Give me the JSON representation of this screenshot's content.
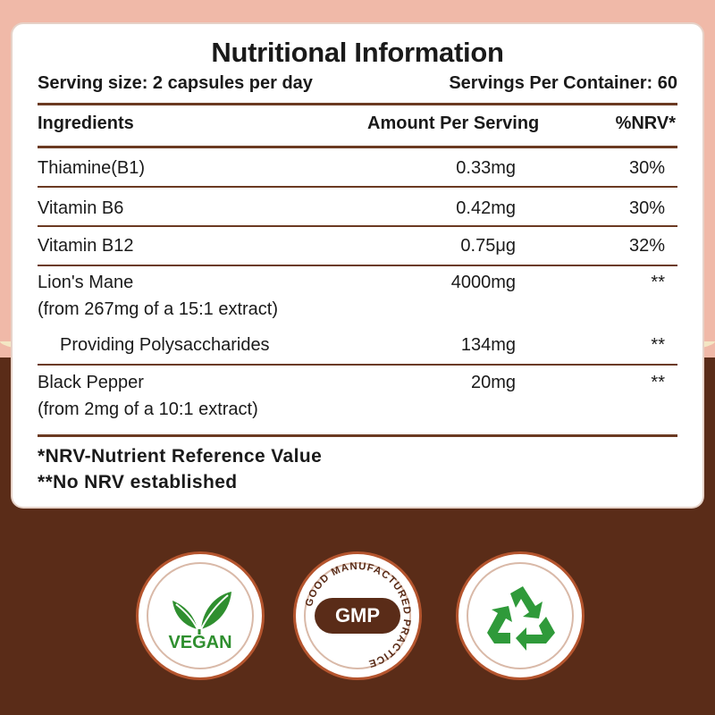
{
  "panel": {
    "title": "Nutritional Information",
    "serving_size": "Serving size: 2 capsules per day",
    "servings_per_container": "Servings Per Container: 60"
  },
  "table": {
    "headers": {
      "ingredient": "Ingredients",
      "amount": "Amount Per Serving",
      "nrv": "%NRV*"
    },
    "rows": [
      {
        "name": "Thiamine(B1)",
        "amount": "0.33mg",
        "nrv": "30%"
      },
      {
        "name": "Vitamin B6",
        "amount": "0.42mg",
        "nrv": "30%"
      },
      {
        "name": "Vitamin B12",
        "amount": "0.75μg",
        "nrv": "32%"
      },
      {
        "name": "Lion's Mane",
        "sub": "(from 267mg of a 15:1 extract)",
        "amount": "4000mg",
        "nrv": "**"
      },
      {
        "name": "Providing Polysaccharides",
        "amount": "134mg",
        "nrv": "**"
      },
      {
        "name": "Black Pepper",
        "sub": "(from 2mg of a 10:1 extract)",
        "amount": "20mg",
        "nrv": "**"
      }
    ]
  },
  "footnotes": {
    "nrv_note": "*NRV-Nutrient Reference Value",
    "no_nrv_note": "**No NRV established"
  },
  "badges": {
    "vegan": {
      "label": "VEGAN",
      "icon": "leaf-icon",
      "color": "#2f8f2f"
    },
    "gmp": {
      "label": "GMP",
      "ring_text": "GOOD MANUFACTURED PRACTICE",
      "color": "#5a2c18"
    },
    "recycle": {
      "icon": "recycle-icon",
      "color": "#2f9a3a"
    }
  },
  "colors": {
    "top_background": "#f0b9a8",
    "bottom_background": "#5a2c18",
    "rule": "#6b3a22"
  }
}
